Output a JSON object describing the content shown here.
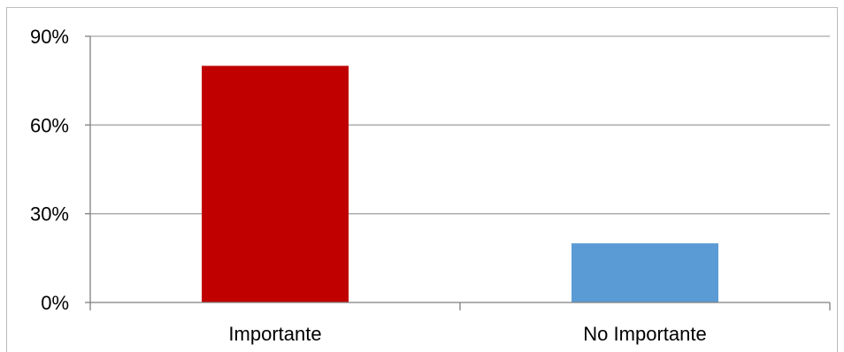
{
  "chart_data": {
    "type": "bar",
    "categories": [
      "Importante",
      "No Importante"
    ],
    "values": [
      80,
      20
    ],
    "colors": [
      "#c00000",
      "#5b9bd5"
    ],
    "ylim": [
      0,
      90
    ],
    "yticks": [
      "0%",
      "30%",
      "60%",
      "90%"
    ],
    "ytick_values": [
      0,
      30,
      60,
      90
    ],
    "grid": true,
    "xlabel": "",
    "ylabel": ""
  }
}
